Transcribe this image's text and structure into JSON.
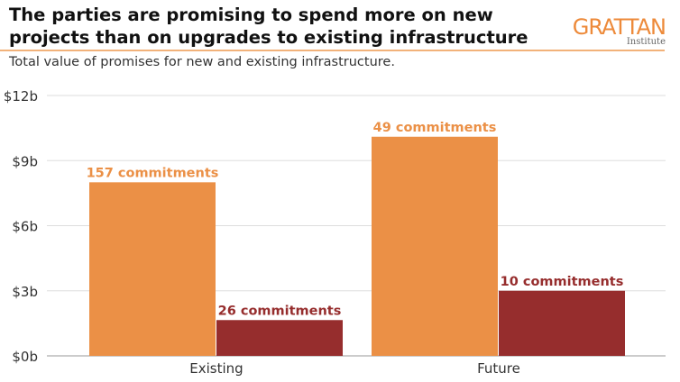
{
  "chart_data": {
    "type": "bar",
    "title": "The parties are promising to spend more on new projects than on upgrades to existing infrastructure",
    "subtitle": "Total value of promises for new and existing infrastructure.",
    "categories": [
      "Existing",
      "Future"
    ],
    "series": [
      {
        "values": [
          8.0,
          10.1
        ],
        "color": "#EB9046",
        "labels": [
          "157 commitments",
          "49 commitments"
        ]
      },
      {
        "values": [
          1.65,
          3.0
        ],
        "color": "#962D2D",
        "labels": [
          "26 commitments",
          "10 commitments"
        ]
      }
    ],
    "ylim": [
      0,
      12
    ],
    "yticks": [
      0,
      3,
      6,
      9,
      12
    ],
    "ytick_labels": [
      "$0b",
      "$3b",
      "$6b",
      "$9b",
      "$12b"
    ],
    "xlabel": "",
    "ylabel": "",
    "grid": true,
    "legend": "none"
  },
  "logo": {
    "name": "GRATTAN",
    "sub": "Institute",
    "color": "#ED8A3A"
  }
}
